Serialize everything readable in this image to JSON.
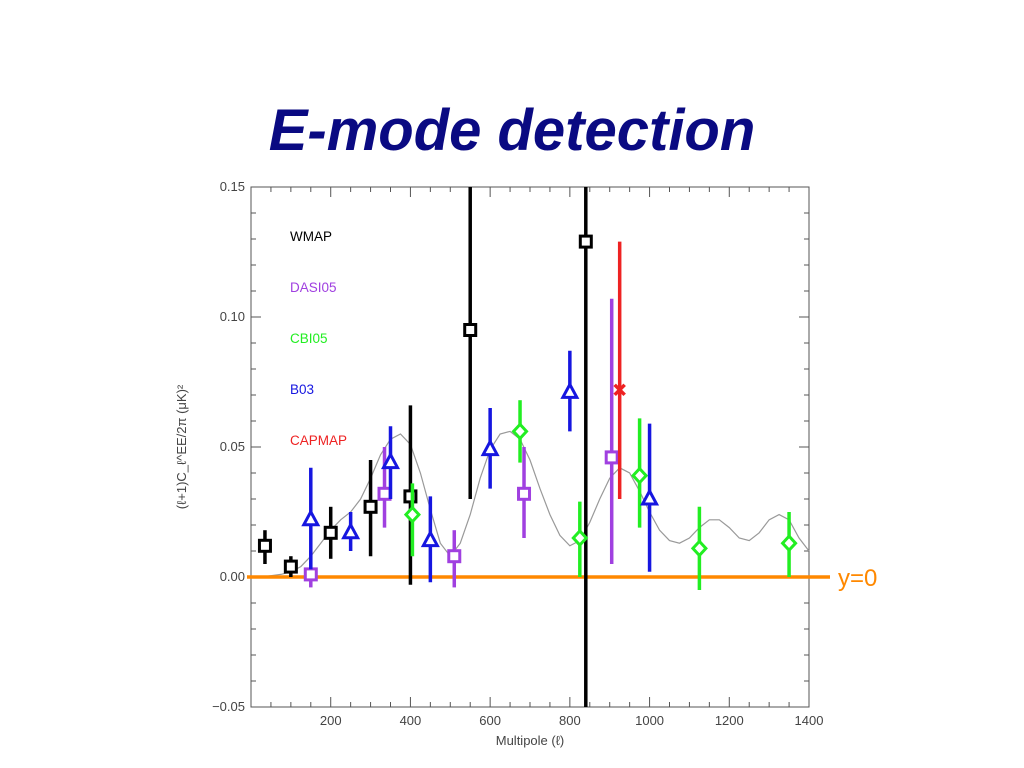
{
  "slide": {
    "title": "E-mode detection"
  },
  "chart_data": {
    "type": "scatter",
    "title": "",
    "xlabel": "Multipole (ℓ)",
    "ylabel": "(ℓ+1)C_ℓ^EE/2π  (μK)²",
    "xlim": [
      0,
      1400
    ],
    "ylim": [
      -0.05,
      0.15
    ],
    "xticks": [
      200,
      400,
      600,
      800,
      1000,
      1200,
      1400
    ],
    "xtick_labels": [
      "200",
      "400",
      "600",
      "800",
      "1000",
      "1200",
      "1400"
    ],
    "yticks": [
      -0.05,
      0.0,
      0.05,
      0.1,
      0.15
    ],
    "ytick_labels": [
      "−0.05",
      "0.00",
      "0.05",
      "0.10",
      "0.15"
    ],
    "legend_position": "upper-left",
    "series": [
      {
        "name": "WMAP",
        "color": "#000000",
        "marker": "square",
        "points": [
          {
            "x": 35,
            "y": 0.012,
            "ylo": 0.005,
            "yhi": 0.018
          },
          {
            "x": 100,
            "y": 0.004,
            "ylo": 0.0,
            "yhi": 0.008
          },
          {
            "x": 200,
            "y": 0.017,
            "ylo": 0.007,
            "yhi": 0.027
          },
          {
            "x": 300,
            "y": 0.027,
            "ylo": 0.008,
            "yhi": 0.045
          },
          {
            "x": 400,
            "y": 0.031,
            "ylo": -0.003,
            "yhi": 0.066
          },
          {
            "x": 550,
            "y": 0.095,
            "ylo": 0.03,
            "yhi": 0.16
          },
          {
            "x": 840,
            "y": 0.129,
            "ylo": -0.05,
            "yhi": 0.16
          }
        ]
      },
      {
        "name": "DASI05",
        "color": "#a040e0",
        "marker": "square",
        "points": [
          {
            "x": 150,
            "y": 0.001,
            "ylo": -0.004,
            "yhi": 0.01
          },
          {
            "x": 335,
            "y": 0.032,
            "ylo": 0.019,
            "yhi": 0.05
          },
          {
            "x": 510,
            "y": 0.008,
            "ylo": -0.004,
            "yhi": 0.018
          },
          {
            "x": 685,
            "y": 0.032,
            "ylo": 0.015,
            "yhi": 0.05
          },
          {
            "x": 905,
            "y": 0.046,
            "ylo": 0.005,
            "yhi": 0.107
          }
        ]
      },
      {
        "name": "CBI05",
        "color": "#22ee22",
        "marker": "diamond",
        "points": [
          {
            "x": 405,
            "y": 0.024,
            "ylo": 0.008,
            "yhi": 0.036
          },
          {
            "x": 675,
            "y": 0.056,
            "ylo": 0.044,
            "yhi": 0.068
          },
          {
            "x": 825,
            "y": 0.015,
            "ylo": 0.0,
            "yhi": 0.029
          },
          {
            "x": 975,
            "y": 0.039,
            "ylo": 0.019,
            "yhi": 0.061
          },
          {
            "x": 1125,
            "y": 0.011,
            "ylo": -0.005,
            "yhi": 0.027
          },
          {
            "x": 1350,
            "y": 0.013,
            "ylo": 0.0,
            "yhi": 0.025
          }
        ]
      },
      {
        "name": "B03",
        "color": "#1616e0",
        "marker": "triangle",
        "points": [
          {
            "x": 150,
            "y": 0.022,
            "ylo": 0.003,
            "yhi": 0.042
          },
          {
            "x": 250,
            "y": 0.017,
            "ylo": 0.01,
            "yhi": 0.025
          },
          {
            "x": 350,
            "y": 0.044,
            "ylo": 0.03,
            "yhi": 0.058
          },
          {
            "x": 450,
            "y": 0.014,
            "ylo": -0.002,
            "yhi": 0.031
          },
          {
            "x": 600,
            "y": 0.049,
            "ylo": 0.034,
            "yhi": 0.065
          },
          {
            "x": 800,
            "y": 0.071,
            "ylo": 0.056,
            "yhi": 0.087
          },
          {
            "x": 1000,
            "y": 0.03,
            "ylo": 0.002,
            "yhi": 0.059
          }
        ]
      },
      {
        "name": "CAPMAP",
        "color": "#ee2222",
        "marker": "cross",
        "points": [
          {
            "x": 925,
            "y": 0.072,
            "ylo": 0.03,
            "yhi": 0.129
          }
        ]
      }
    ],
    "model_curve": {
      "color": "#999999",
      "x": [
        0,
        25,
        50,
        75,
        100,
        125,
        150,
        175,
        200,
        225,
        250,
        275,
        300,
        325,
        350,
        375,
        400,
        425,
        450,
        475,
        500,
        525,
        550,
        575,
        600,
        625,
        650,
        675,
        700,
        725,
        750,
        775,
        800,
        825,
        850,
        875,
        900,
        925,
        950,
        975,
        1000,
        1025,
        1050,
        1075,
        1100,
        1125,
        1150,
        1175,
        1200,
        1225,
        1250,
        1275,
        1300,
        1325,
        1350,
        1375,
        1400
      ],
      "y": [
        0.0,
        0.0,
        0.0005,
        0.001,
        0.002,
        0.004,
        0.008,
        0.013,
        0.018,
        0.022,
        0.025,
        0.03,
        0.038,
        0.047,
        0.053,
        0.055,
        0.051,
        0.04,
        0.026,
        0.013,
        0.008,
        0.013,
        0.024,
        0.038,
        0.049,
        0.055,
        0.056,
        0.053,
        0.045,
        0.034,
        0.024,
        0.016,
        0.012,
        0.014,
        0.021,
        0.03,
        0.038,
        0.042,
        0.04,
        0.033,
        0.025,
        0.018,
        0.014,
        0.013,
        0.015,
        0.019,
        0.022,
        0.022,
        0.019,
        0.015,
        0.014,
        0.017,
        0.022,
        0.024,
        0.022,
        0.015,
        0.01
      ]
    },
    "reference_line": {
      "y": 0.0,
      "label": "y=0",
      "color": "#ff8800"
    }
  }
}
